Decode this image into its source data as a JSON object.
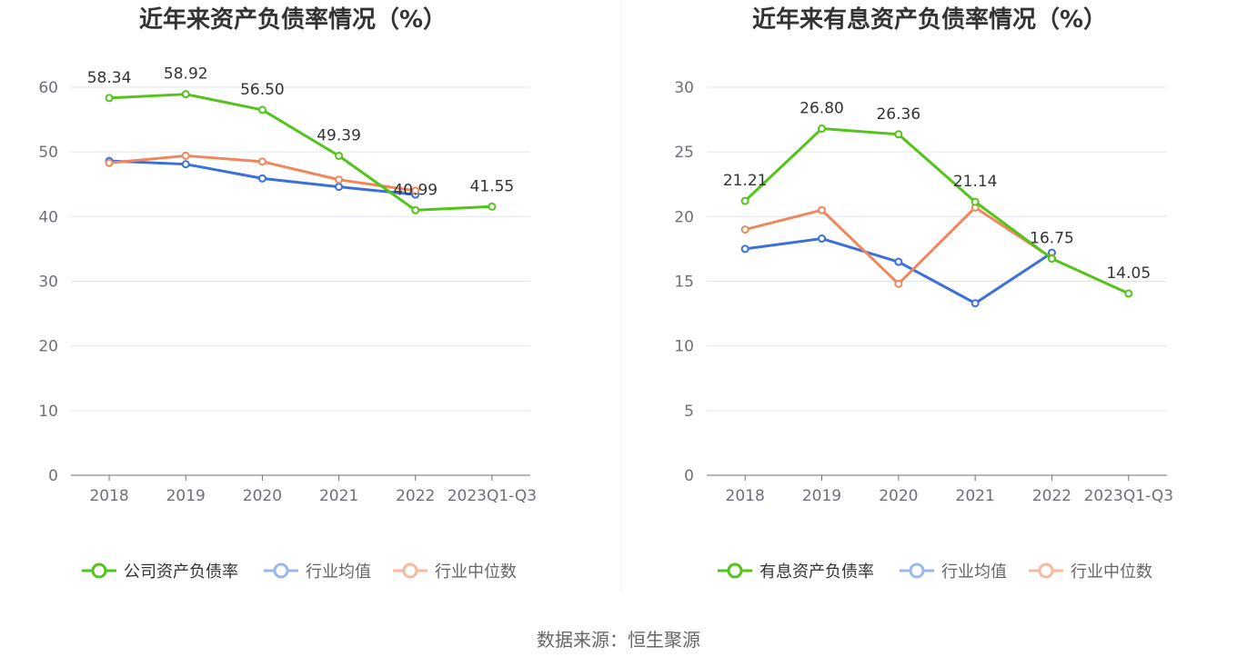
{
  "source_note": "数据来源：恒生聚源",
  "chart_data": [
    {
      "type": "line",
      "title": "近年来资产负债率情况（%）",
      "categories": [
        "2018",
        "2019",
        "2020",
        "2021",
        "2022",
        "2023Q1-Q3"
      ],
      "ylim": [
        0,
        60
      ],
      "yticks": [
        0,
        10,
        20,
        30,
        40,
        50,
        60
      ],
      "grid": true,
      "legend_position": "bottom",
      "series": [
        {
          "name": "公司资产负债率",
          "color": "#52c41a",
          "values": [
            58.34,
            58.92,
            56.5,
            49.39,
            40.99,
            41.55
          ],
          "labels": [
            "58.34",
            "58.92",
            "56.50",
            "49.39",
            "40.99",
            "41.55"
          ]
        },
        {
          "name": "行业均值",
          "color": "#3b6fdc",
          "values": [
            48.6,
            48.1,
            45.9,
            44.6,
            43.4,
            null
          ]
        },
        {
          "name": "行业中位数",
          "color": "#f0875a",
          "values": [
            48.3,
            49.4,
            48.5,
            45.7,
            44.0,
            null
          ]
        }
      ]
    },
    {
      "type": "line",
      "title": "近年来有息资产负债率情况（%）",
      "categories": [
        "2018",
        "2019",
        "2020",
        "2021",
        "2022",
        "2023Q1-Q3"
      ],
      "ylim": [
        0,
        30
      ],
      "yticks": [
        0,
        5,
        10,
        15,
        20,
        25,
        30
      ],
      "grid": true,
      "legend_position": "bottom",
      "series": [
        {
          "name": "有息资产负债率",
          "color": "#52c41a",
          "values": [
            21.21,
            26.8,
            26.36,
            21.14,
            16.75,
            14.05
          ],
          "labels": [
            "21.21",
            "26.80",
            "26.36",
            "21.14",
            "16.75",
            "14.05"
          ]
        },
        {
          "name": "行业均值",
          "color": "#3b6fdc",
          "values": [
            17.5,
            18.3,
            16.5,
            13.3,
            17.2,
            null
          ]
        },
        {
          "name": "行业中位数",
          "color": "#f0875a",
          "values": [
            19.0,
            20.5,
            14.8,
            20.7,
            16.8,
            null
          ]
        }
      ]
    }
  ]
}
